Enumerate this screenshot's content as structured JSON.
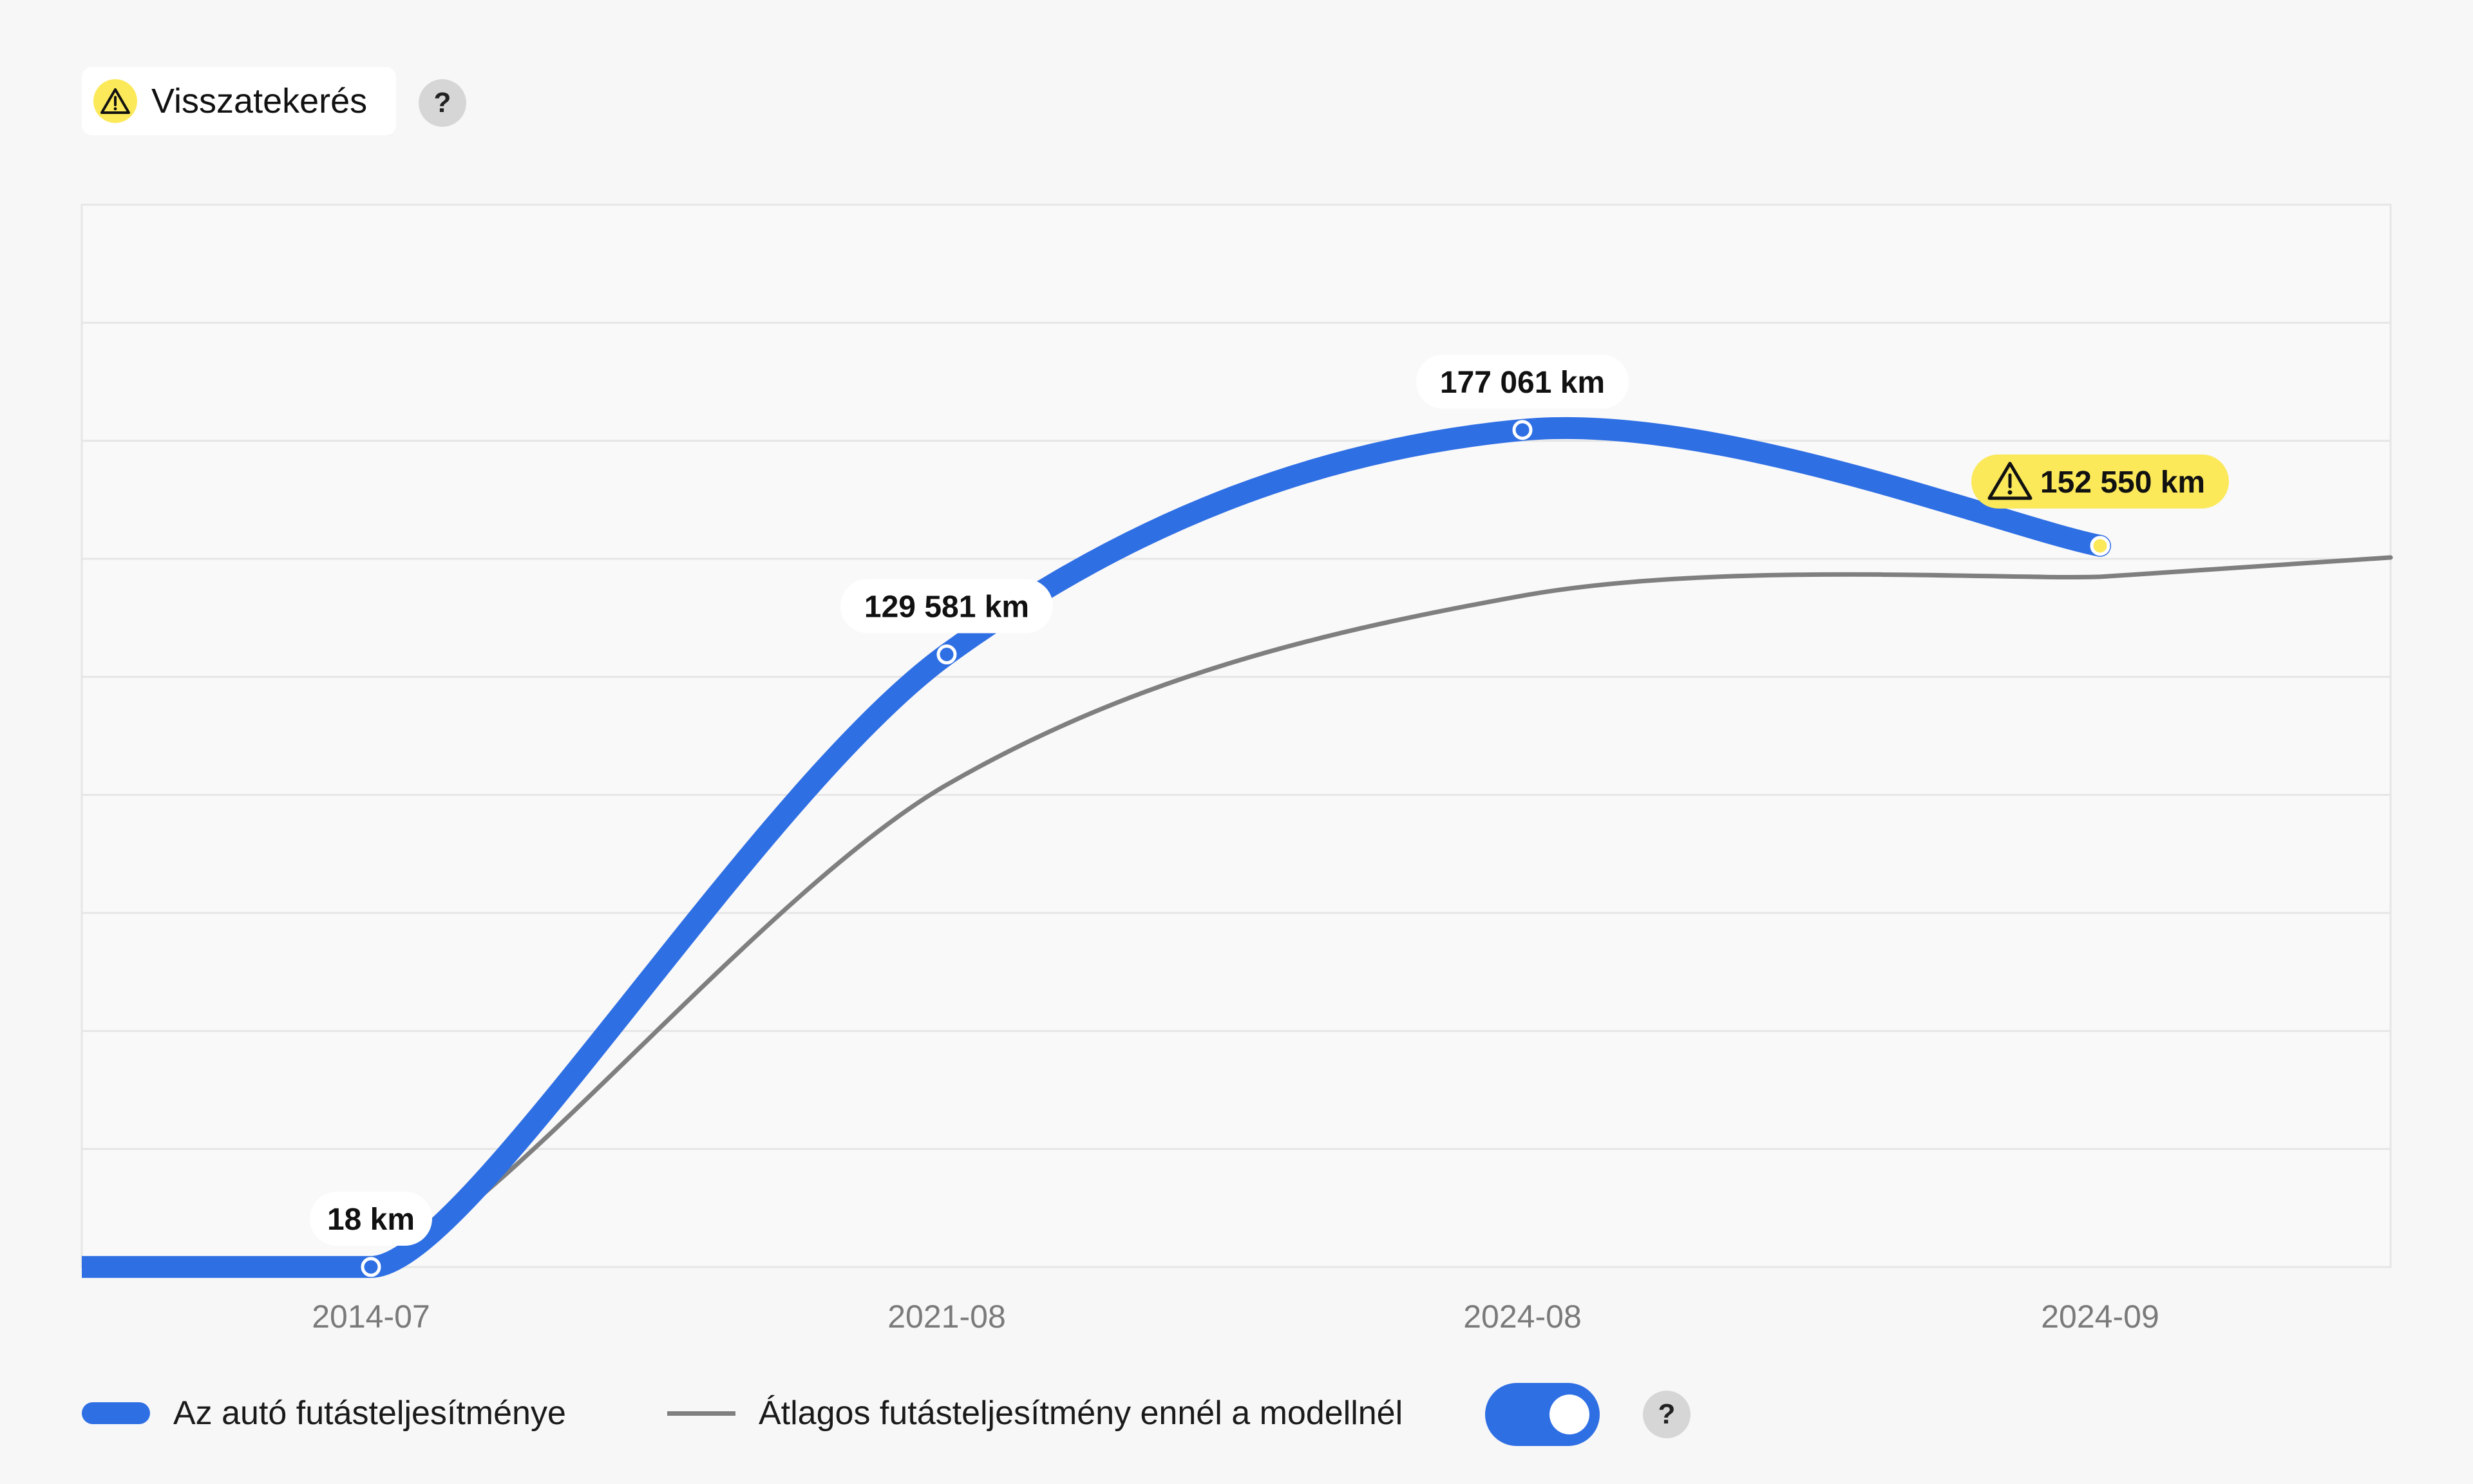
{
  "header": {
    "warning_label": "Visszatekerés",
    "help_label": "?"
  },
  "legend": {
    "car_label": "Az autó futásteljesítménye",
    "avg_label": "Átlagos futásteljesítmény ennél a modellnél",
    "help_label": "?",
    "toggle_on": true
  },
  "colors": {
    "car_line": "#2f6fe4",
    "avg_line": "#7f7f7f",
    "warning": "#fbe95a"
  },
  "icons": {
    "warning": "warning-triangle-icon",
    "help": "question-mark-icon"
  },
  "chart_data": {
    "type": "line",
    "categories": [
      "2014-07",
      "2021-08",
      "2024-08",
      "2024-09"
    ],
    "ylim": [
      0,
      207000
    ],
    "grid": true,
    "series": [
      {
        "name": "Az autó futásteljesítménye",
        "values": [
          18,
          129581,
          177061,
          152550
        ],
        "labels": [
          "18 km",
          "129 581 km",
          "177 061 km",
          "152 550 km"
        ],
        "flagged": [
          false,
          false,
          false,
          true
        ]
      },
      {
        "name": "Átlagos futásteljesítmény ennél a modellnél",
        "values": [
          1500,
          102000,
          142000,
          146000
        ]
      }
    ]
  }
}
